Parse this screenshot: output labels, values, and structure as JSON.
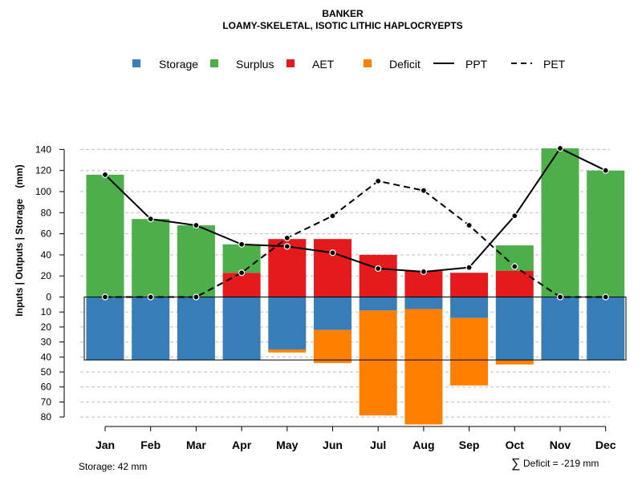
{
  "chart_data": {
    "type": "bar",
    "title": "BANKER",
    "subtitle": "LOAMY-SKELETAL, ISOTIC LITHIC HAPLOCRYEPTS",
    "ylabel": "Inputs | Outputs | Storage    (mm)",
    "categories": [
      "Jan",
      "Feb",
      "Mar",
      "Apr",
      "May",
      "Jun",
      "Jul",
      "Aug",
      "Sep",
      "Oct",
      "Nov",
      "Dec"
    ],
    "ylim_upper": [
      0,
      150
    ],
    "ylim_lower": [
      0,
      80
    ],
    "yticks_upper": [
      0,
      20,
      40,
      60,
      80,
      100,
      120,
      140
    ],
    "yticks_lower": [
      10,
      20,
      30,
      40,
      50,
      60,
      70,
      80
    ],
    "legend": [
      {
        "label": "Storage",
        "kind": "box",
        "color": "#377EB8"
      },
      {
        "label": "Surplus",
        "kind": "box",
        "color": "#4DAF4A"
      },
      {
        "label": "AET",
        "kind": "box",
        "color": "#E41A1C"
      },
      {
        "label": "Deficit",
        "kind": "box",
        "color": "#FF7F00"
      },
      {
        "label": "PPT",
        "kind": "solid",
        "color": "#000000"
      },
      {
        "label": "PET",
        "kind": "dashed",
        "color": "#000000"
      }
    ],
    "series": [
      {
        "name": "AET",
        "color": "#E41A1C",
        "values": [
          0,
          0,
          0,
          23,
          55,
          55,
          40,
          25,
          23,
          25,
          0,
          0
        ]
      },
      {
        "name": "Surplus",
        "color": "#4DAF4A",
        "values": [
          116,
          74,
          68,
          27,
          0,
          0,
          0,
          0,
          0,
          24,
          141,
          120
        ]
      },
      {
        "name": "Storage",
        "color": "#377EB8",
        "values": [
          42,
          42,
          42,
          42,
          35,
          22,
          9,
          8,
          14,
          42,
          42,
          42
        ]
      },
      {
        "name": "Deficit",
        "color": "#FF7F00",
        "values": [
          0,
          0,
          0,
          0,
          2,
          22,
          70,
          77,
          45,
          3,
          0,
          0
        ]
      },
      {
        "name": "PPT",
        "color": "#000000",
        "values": [
          116,
          74,
          68,
          50,
          48,
          42,
          27,
          24,
          28,
          77,
          141,
          120
        ]
      },
      {
        "name": "PET",
        "color": "#000000",
        "values": [
          0,
          0,
          0,
          23,
          56,
          77,
          110,
          101,
          68,
          29,
          0,
          0
        ]
      }
    ],
    "storage_note": "Storage: 42 mm",
    "deficit_symbol": "∑",
    "deficit_note": "Deficit = -219 mm"
  }
}
